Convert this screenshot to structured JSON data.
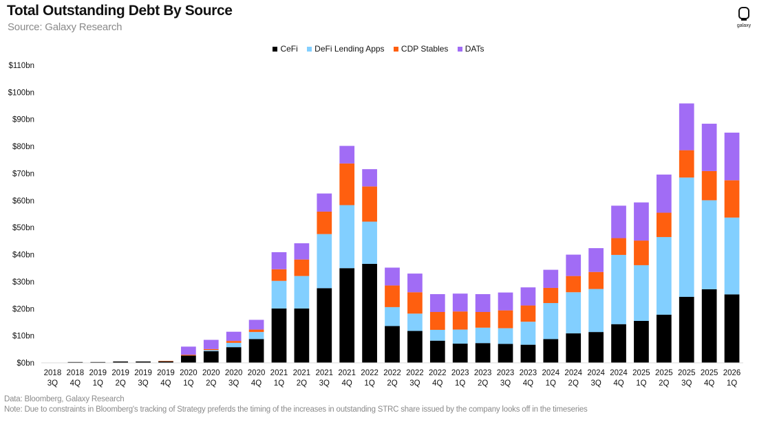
{
  "header": {
    "title": "Total Outstanding Debt By Source",
    "subtitle": "Source: Galaxy Research",
    "logo_text": "galaxy"
  },
  "footer": {
    "data_note": "Data: Bloomberg, Galaxy Research",
    "note": "Note: Due to constraints in Bloomberg's tracking of Strategy preferds the timing of the increases in outstanding STRC share issued by the company looks off in the timeseries"
  },
  "legend": [
    {
      "label": "CeFi",
      "color": "#000000"
    },
    {
      "label": "DeFi Lending Apps",
      "color": "#82CFFF"
    },
    {
      "label": "CDP Stables",
      "color": "#FF5F0F"
    },
    {
      "label": "DATs",
      "color": "#A16CF5"
    }
  ],
  "chart_data": {
    "type": "bar",
    "stacked": true,
    "title": "Total Outstanding Debt By Source",
    "subtitle": "Source: Galaxy Research",
    "categories": [
      [
        "2018",
        "3Q"
      ],
      [
        "2018",
        "4Q"
      ],
      [
        "2019",
        "1Q"
      ],
      [
        "2019",
        "2Q"
      ],
      [
        "2019",
        "3Q"
      ],
      [
        "2019",
        "4Q"
      ],
      [
        "2020",
        "1Q"
      ],
      [
        "2020",
        "2Q"
      ],
      [
        "2020",
        "3Q"
      ],
      [
        "2020",
        "4Q"
      ],
      [
        "2021",
        "1Q"
      ],
      [
        "2021",
        "2Q"
      ],
      [
        "2021",
        "3Q"
      ],
      [
        "2021",
        "4Q"
      ],
      [
        "2022",
        "1Q"
      ],
      [
        "2022",
        "2Q"
      ],
      [
        "2022",
        "3Q"
      ],
      [
        "2022",
        "4Q"
      ],
      [
        "2023",
        "1Q"
      ],
      [
        "2023",
        "2Q"
      ],
      [
        "2023",
        "3Q"
      ],
      [
        "2023",
        "4Q"
      ],
      [
        "2024",
        "1Q"
      ],
      [
        "2024",
        "2Q"
      ],
      [
        "2024",
        "3Q"
      ],
      [
        "2024",
        "4Q"
      ],
      [
        "2025",
        "1Q"
      ],
      [
        "2025",
        "2Q"
      ],
      [
        "2025",
        "3Q"
      ],
      [
        "2025",
        "4Q"
      ],
      [
        "2026",
        "1Q"
      ]
    ],
    "series": [
      {
        "name": "CeFi",
        "color": "#000000",
        "values": [
          0.1,
          0.3,
          0.3,
          0.5,
          0.5,
          0.6,
          2.7,
          4.3,
          5.8,
          8.8,
          20.1,
          20.1,
          27.6,
          35.0,
          36.6,
          13.6,
          11.8,
          8.2,
          7.1,
          7.3,
          7.0,
          6.7,
          8.8,
          10.9,
          11.4,
          14.3,
          15.5,
          17.8,
          24.4,
          27.2,
          25.3
        ]
      },
      {
        "name": "DeFi Lending Apps",
        "color": "#82CFFF",
        "values": [
          0,
          0,
          0,
          0,
          0,
          0,
          0,
          0.4,
          1.6,
          2.6,
          10.2,
          12.0,
          20.0,
          23.3,
          15.6,
          7.0,
          6.4,
          4.0,
          5.2,
          5.7,
          5.8,
          8.5,
          13.3,
          15.2,
          15.9,
          25.6,
          20.6,
          28.7,
          44.1,
          32.9,
          28.4
        ]
      },
      {
        "name": "CDP Stables",
        "color": "#FF5F0F",
        "values": [
          0,
          0,
          0,
          0,
          0,
          0.1,
          0.3,
          0.4,
          0.7,
          0.9,
          4.3,
          6.1,
          8.3,
          15.4,
          13.0,
          8.0,
          7.9,
          6.6,
          6.7,
          5.8,
          6.6,
          6.0,
          5.6,
          6.0,
          6.3,
          6.2,
          9.1,
          9.0,
          10.1,
          10.8,
          13.8
        ]
      },
      {
        "name": "DATs",
        "color": "#A16CF5",
        "values": [
          0,
          0,
          0,
          0,
          0,
          0,
          3.0,
          3.4,
          3.4,
          3.6,
          6.3,
          6.0,
          6.7,
          6.5,
          6.4,
          6.6,
          6.9,
          6.6,
          6.6,
          6.6,
          6.6,
          6.7,
          6.7,
          7.9,
          8.8,
          12.0,
          14.1,
          14.1,
          17.3,
          17.5,
          17.6
        ]
      }
    ],
    "yticks": [
      "$0bn",
      "$10bn",
      "$20bn",
      "$30bn",
      "$40bn",
      "$50bn",
      "$60bn",
      "$70bn",
      "$80bn",
      "$90bn",
      "$100bn",
      "$110bn"
    ],
    "ylim": [
      0,
      110
    ],
    "legend_position": "top-center",
    "grid": false
  }
}
